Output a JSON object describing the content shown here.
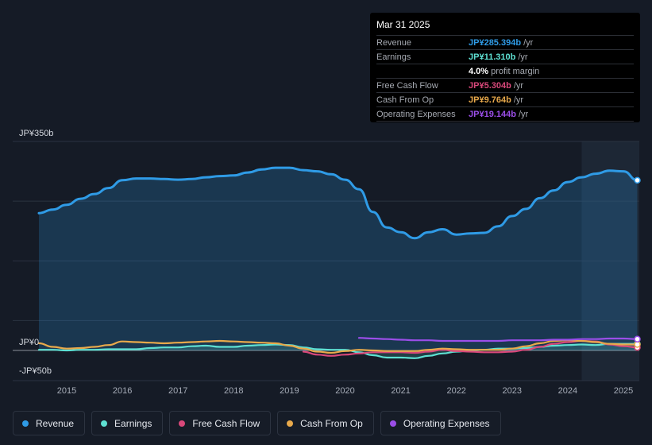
{
  "tooltip": {
    "date": "Mar 31 2025",
    "rows": [
      {
        "label": "Revenue",
        "value": "JP¥285.394b",
        "unit": "/yr",
        "color": "#2f9be6"
      },
      {
        "label": "Earnings",
        "value": "JP¥11.310b",
        "unit": "/yr",
        "color": "#5ee0d2"
      },
      {
        "label": "",
        "value": "4.0%",
        "unit": "profit margin",
        "color": "#ffffff"
      },
      {
        "label": "Free Cash Flow",
        "value": "JP¥5.304b",
        "unit": "/yr",
        "color": "#d9487a"
      },
      {
        "label": "Cash From Op",
        "value": "JP¥9.764b",
        "unit": "/yr",
        "color": "#e8a94b"
      },
      {
        "label": "Operating Expenses",
        "value": "JP¥19.144b",
        "unit": "/yr",
        "color": "#9b4ee8"
      }
    ]
  },
  "legend": [
    {
      "label": "Revenue",
      "color": "#2f9be6"
    },
    {
      "label": "Earnings",
      "color": "#5ee0d2"
    },
    {
      "label": "Free Cash Flow",
      "color": "#d9487a"
    },
    {
      "label": "Cash From Op",
      "color": "#e8a94b"
    },
    {
      "label": "Operating Expenses",
      "color": "#9b4ee8"
    }
  ],
  "chart_data": {
    "type": "area",
    "title": "",
    "xlabel": "",
    "ylabel": "",
    "ylim": [
      -50,
      350
    ],
    "xlim": [
      2014.17,
      2025.42
    ],
    "y_tick_labels": [
      {
        "value": 350,
        "label": "JP¥350b"
      },
      {
        "value": 0,
        "label": "JP¥0"
      },
      {
        "value": -50,
        "label": "-JP¥50b"
      }
    ],
    "x_tick_labels": [
      "2015",
      "2016",
      "2017",
      "2018",
      "2019",
      "2020",
      "2021",
      "2022",
      "2023",
      "2024",
      "2025"
    ],
    "x_tick_values": [
      2015,
      2016,
      2017,
      2018,
      2019,
      2020,
      2021,
      2022,
      2023,
      2024,
      2025
    ],
    "highlight_start": 2024.25,
    "series": [
      {
        "name": "Revenue",
        "color": "#2f9be6",
        "fill": true,
        "x": [
          2014.5,
          2014.75,
          2015.0,
          2015.25,
          2015.5,
          2015.75,
          2016.0,
          2016.25,
          2016.5,
          2016.75,
          2017.0,
          2017.25,
          2017.5,
          2017.75,
          2018.0,
          2018.25,
          2018.5,
          2018.75,
          2019.0,
          2019.25,
          2019.5,
          2019.75,
          2020.0,
          2020.25,
          2020.5,
          2020.75,
          2021.0,
          2021.25,
          2021.5,
          2021.75,
          2022.0,
          2022.25,
          2022.5,
          2022.75,
          2023.0,
          2023.25,
          2023.5,
          2023.75,
          2024.0,
          2024.25,
          2024.5,
          2024.75,
          2025.0,
          2025.25
        ],
        "values": [
          230,
          236,
          244,
          254,
          262,
          272,
          285,
          288,
          288,
          287,
          286,
          287,
          290,
          292,
          293,
          298,
          303,
          306,
          306,
          302,
          300,
          295,
          286,
          270,
          232,
          206,
          198,
          188,
          198,
          203,
          194,
          196,
          197,
          208,
          225,
          237,
          255,
          268,
          282,
          290,
          296,
          301,
          300,
          285
        ]
      },
      {
        "name": "Earnings",
        "color": "#5ee0d2",
        "fill": true,
        "x": [
          2014.5,
          2014.75,
          2015.0,
          2015.25,
          2015.5,
          2015.75,
          2016.0,
          2016.25,
          2016.5,
          2016.75,
          2017.0,
          2017.25,
          2017.5,
          2017.75,
          2018.0,
          2018.25,
          2018.5,
          2018.75,
          2019.0,
          2019.25,
          2019.5,
          2019.75,
          2020.0,
          2020.25,
          2020.5,
          2020.75,
          2021.0,
          2021.25,
          2021.5,
          2021.75,
          2022.0,
          2022.25,
          2022.5,
          2022.75,
          2023.0,
          2023.25,
          2023.5,
          2023.75,
          2024.0,
          2024.25,
          2024.5,
          2024.75,
          2025.0,
          2025.25
        ],
        "values": [
          1,
          1,
          0,
          1,
          1,
          2,
          2,
          2,
          4,
          5,
          5,
          7,
          8,
          6,
          6,
          8,
          9,
          10,
          9,
          5,
          2,
          1,
          1,
          -3,
          -8,
          -12,
          -12,
          -13,
          -9,
          -5,
          -2,
          0,
          1,
          3,
          3,
          4,
          6,
          8,
          9,
          10,
          9,
          11,
          11,
          11
        ]
      },
      {
        "name": "Free Cash Flow",
        "color": "#d9487a",
        "fill": false,
        "x": [
          2019.25,
          2019.5,
          2019.75,
          2020.0,
          2020.25,
          2020.5,
          2020.75,
          2021.0,
          2021.25,
          2021.5,
          2021.75,
          2022.0,
          2022.25,
          2022.5,
          2022.75,
          2023.0,
          2023.25,
          2023.5,
          2023.75,
          2024.0,
          2024.25,
          2024.5,
          2024.75,
          2025.0,
          2025.25
        ],
        "values": [
          -2,
          -7,
          -9,
          -7,
          -5,
          -3,
          -3,
          -3,
          -4,
          -2,
          1,
          -1,
          -2,
          -3,
          -3,
          -2,
          1,
          6,
          11,
          14,
          16,
          15,
          10,
          7,
          5
        ]
      },
      {
        "name": "Cash From Op",
        "color": "#e8a94b",
        "fill": false,
        "x": [
          2014.5,
          2014.75,
          2015.0,
          2015.25,
          2015.5,
          2015.75,
          2016.0,
          2016.25,
          2016.5,
          2016.75,
          2017.0,
          2017.25,
          2017.5,
          2017.75,
          2018.0,
          2018.25,
          2018.5,
          2018.75,
          2019.0,
          2019.25,
          2019.5,
          2019.75,
          2020.0,
          2020.25,
          2020.5,
          2020.75,
          2021.0,
          2021.25,
          2021.5,
          2021.75,
          2022.0,
          2022.25,
          2022.5,
          2022.75,
          2023.0,
          2023.25,
          2023.5,
          2023.75,
          2024.0,
          2024.25,
          2024.5,
          2024.75,
          2025.0,
          2025.25
        ],
        "values": [
          12,
          6,
          3,
          4,
          6,
          9,
          15,
          14,
          13,
          12,
          13,
          14,
          15,
          16,
          15,
          14,
          13,
          12,
          8,
          3,
          -2,
          -4,
          -1,
          1,
          0,
          -1,
          -1,
          -1,
          1,
          3,
          2,
          1,
          1,
          1,
          3,
          7,
          12,
          16,
          17,
          16,
          14,
          11,
          10,
          10
        ]
      },
      {
        "name": "Operating Expenses",
        "color": "#9b4ee8",
        "fill": false,
        "x": [
          2020.25,
          2020.5,
          2020.75,
          2021.0,
          2021.25,
          2021.5,
          2021.75,
          2022.0,
          2022.25,
          2022.5,
          2022.75,
          2023.0,
          2023.25,
          2023.5,
          2023.75,
          2024.0,
          2024.25,
          2024.5,
          2024.75,
          2025.0,
          2025.25
        ],
        "values": [
          21,
          20,
          19,
          18,
          17,
          17,
          16,
          16,
          16,
          16,
          16,
          17,
          17,
          17,
          18,
          18,
          19,
          19,
          20,
          20,
          19
        ]
      }
    ]
  }
}
